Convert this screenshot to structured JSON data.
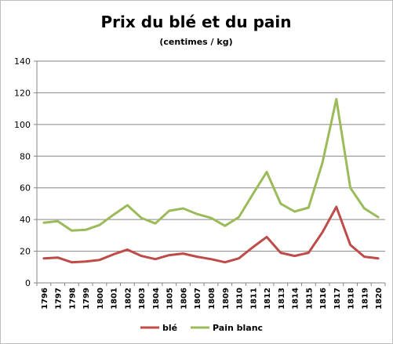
{
  "chart_data": {
    "type": "line",
    "title": "Prix du blé et du pain",
    "subtitle": "(centimes / kg)",
    "xlabel": "",
    "ylabel": "",
    "ylim": [
      0,
      140
    ],
    "y_ticks": [
      0,
      20,
      40,
      60,
      80,
      100,
      120,
      140
    ],
    "grid": true,
    "legend_position": "bottom",
    "categories": [
      "1796",
      "1797",
      "1798",
      "1799",
      "1800",
      "1801",
      "1802",
      "1803",
      "1804",
      "1805",
      "1806",
      "1807",
      "1808",
      "1809",
      "1810",
      "1811",
      "1812",
      "1813",
      "1814",
      "1815",
      "1816",
      "1817",
      "1818",
      "1819",
      "1820"
    ],
    "series": [
      {
        "name": "blé",
        "color": "#be4b48",
        "values": [
          15.5,
          16,
          13,
          13.5,
          14.5,
          18,
          21,
          17,
          15,
          17.5,
          18.5,
          16.5,
          15,
          13,
          15.5,
          22.5,
          29,
          19,
          17,
          19,
          32,
          48,
          24,
          16.5,
          15.5
        ]
      },
      {
        "name": "Pain blanc",
        "color": "#9bbb59",
        "values": [
          38,
          39,
          33,
          33.5,
          36.5,
          43,
          49,
          41,
          37.5,
          45.5,
          47,
          43.5,
          41,
          36,
          41.5,
          56,
          70,
          50,
          45,
          47.5,
          76,
          116,
          60,
          47,
          41.5
        ]
      }
    ]
  }
}
